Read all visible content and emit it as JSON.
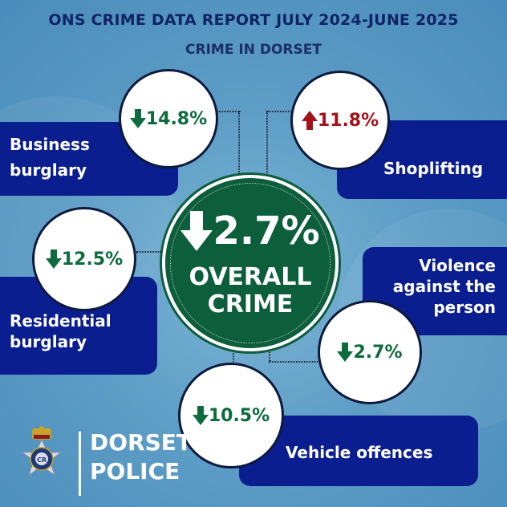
{
  "header": {
    "title": "ONS CRIME DATA REPORT JULY 2024-JUNE 2025",
    "subtitle": "CRIME IN DORSET"
  },
  "overall": {
    "value": "2.7%",
    "line1": "OVERALL",
    "line2": "CRIME",
    "direction": "down",
    "color": "#0d5e3c"
  },
  "stats": [
    {
      "id": "business-burglary",
      "label_lines": [
        "Business",
        "burglary"
      ],
      "value": "14.8%",
      "direction": "down",
      "color": "#0d6b3d"
    },
    {
      "id": "shoplifting",
      "label_lines": [
        "Shoplifting"
      ],
      "value": "11.8%",
      "direction": "up",
      "color": "#a3111a"
    },
    {
      "id": "residential-burglary",
      "label_lines": [
        "Residential",
        "burglary"
      ],
      "value": "12.5%",
      "direction": "down",
      "color": "#0d6b3d"
    },
    {
      "id": "violence",
      "label_lines": [
        "Violence",
        "against the",
        "person"
      ],
      "value": "2.7%",
      "direction": "down",
      "color": "#0d6b3d"
    },
    {
      "id": "vehicle-offences",
      "label_lines": [
        "Vehicle offences"
      ],
      "value": "10.5%",
      "direction": "down",
      "color": "#0d6b3d"
    }
  ],
  "logo": {
    "line1": "DORSET",
    "line2": "POLICE"
  },
  "colors": {
    "panel": "#0b1e8f",
    "title": "#0f2466",
    "background": "#5d9dc6"
  }
}
